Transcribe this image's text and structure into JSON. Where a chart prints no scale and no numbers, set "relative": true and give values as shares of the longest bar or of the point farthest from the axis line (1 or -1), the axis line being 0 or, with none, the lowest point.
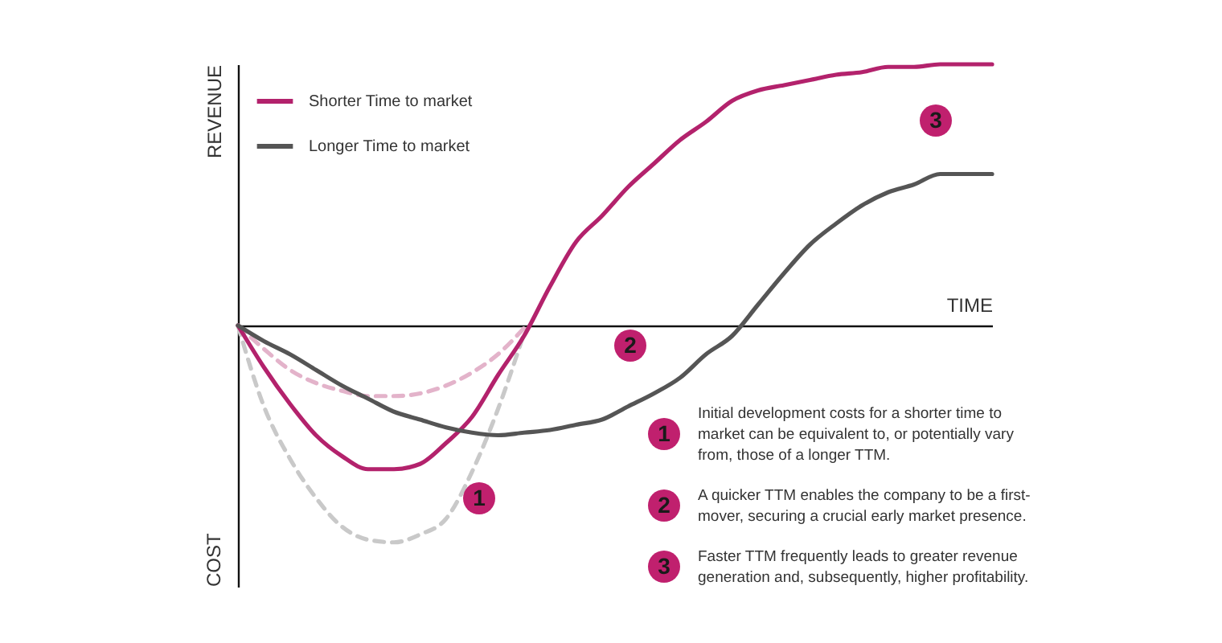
{
  "chart_data": {
    "type": "line",
    "relative": true,
    "xlabel": "TIME",
    "ylabel": "REVENUE",
    "legend": "top left",
    "line_style": "solid",
    "categories": [
      null,
      null,
      null,
      null,
      null,
      null,
      null,
      null,
      null,
      null,
      null,
      null,
      null,
      null,
      null,
      null,
      null,
      null,
      null,
      null,
      null,
      null,
      null,
      null,
      null,
      null,
      null,
      null,
      null,
      null
    ],
    "series": [
      {
        "color": "#e3b3ca",
        "line_style": "dashed",
        "values": [
          0,
          -0.09,
          -0.17,
          -0.22,
          -0.25,
          -0.27,
          -0.27,
          -0.26,
          -0.23,
          -0.18,
          -0.11,
          -0.01,
          null,
          null,
          null,
          null,
          null,
          null,
          null,
          null,
          null,
          null,
          null,
          null,
          null,
          null,
          null,
          null,
          null,
          null
        ]
      },
      {
        "color": "#c9c9c9",
        "line_style": "dashed",
        "values": [
          0,
          -0.31,
          -0.51,
          -0.66,
          -0.77,
          -0.82,
          -0.83,
          -0.8,
          -0.74,
          -0.56,
          -0.32,
          -0.03,
          null,
          null,
          null,
          null,
          null,
          null,
          null,
          null,
          null,
          null,
          null,
          null,
          null,
          null,
          null,
          null,
          null,
          null
        ]
      },
      {
        "name": "Shorter Time to market",
        "color": "#b3226c",
        "values": [
          0,
          -0.16,
          -0.3,
          -0.42,
          -0.5,
          -0.55,
          -0.55,
          -0.53,
          -0.45,
          -0.35,
          -0.19,
          -0.04,
          0.15,
          0.32,
          0.42,
          0.53,
          0.62,
          0.71,
          0.78,
          0.86,
          0.9,
          0.92,
          0.94,
          0.96,
          0.97,
          0.99,
          0.99,
          1.0,
          1.0,
          1.0
        ]
      },
      {
        "name": "Longer Time to market",
        "color": "#555555",
        "values": [
          0,
          -0.06,
          -0.11,
          -0.17,
          -0.23,
          -0.28,
          -0.33,
          -0.36,
          -0.39,
          -0.41,
          -0.42,
          -0.41,
          -0.4,
          -0.38,
          -0.36,
          -0.31,
          -0.26,
          -0.2,
          -0.11,
          -0.04,
          0.08,
          0.2,
          0.31,
          0.39,
          0.46,
          0.51,
          0.54,
          0.58,
          0.58,
          0.58
        ]
      }
    ],
    "annotations": [
      "COST",
      "1",
      "2",
      "3",
      "Initial development costs for a shorter time to market can be equivalent to, or potentially vary from, those of a longer TTM.",
      "A quicker TTM enables the company to be a first-mover, securing a crucial early market presence.",
      "Faster TTM frequently leads to greater revenue generation and, subsequently, higher profitability."
    ]
  }
}
